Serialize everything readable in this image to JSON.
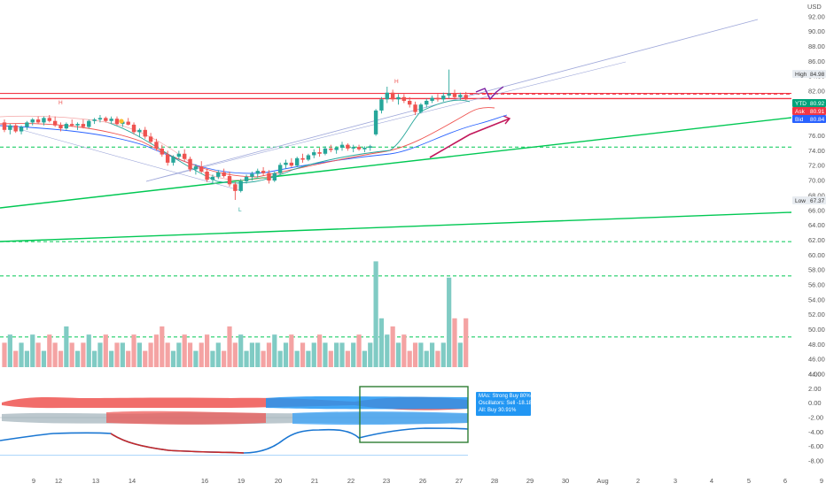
{
  "currency": "USD",
  "labels": {
    "high": "High",
    "high_value": "84.98",
    "low": "Low",
    "low_value": "67.37",
    "ytd": "YTD",
    "ytd_value": "80.92",
    "ask": "Ask",
    "ask_value": "80.91",
    "bid": "Bid",
    "bid_value": "80.84",
    "pivot_h1": "H",
    "pivot_h2": "H",
    "pivot_l": "L"
  },
  "signal": {
    "line1": "MAs: Strong Buy 80%",
    "line2": "Oscillators: Sell -18.18%",
    "line3": "All: Buy 30.91%"
  },
  "colors": {
    "up": "#26a69a",
    "down": "#ef5350",
    "accent_green": "#00c853",
    "accent_red": "#f23645",
    "accent_blue": "#2962ff",
    "signal_blue": "#2196f3"
  },
  "chart_data": {
    "type": "candlestick",
    "x_ticks": [
      "9",
      "12",
      "13",
      "14",
      "16",
      "19",
      "20",
      "21",
      "22",
      "23",
      "26",
      "27",
      "28",
      "29",
      "30",
      "Aug",
      "2",
      "3",
      "4",
      "5",
      "6",
      "9"
    ],
    "price_ticks": [
      "92.00",
      "90.00",
      "88.00",
      "86.00",
      "84.00",
      "82.00",
      "80.00",
      "78.00",
      "76.00",
      "74.00",
      "72.00",
      "70.00",
      "68.00",
      "66.00",
      "64.00",
      "62.00",
      "60.00",
      "58.00",
      "56.00",
      "54.00",
      "52.00",
      "50.00",
      "48.00",
      "46.00",
      "44.00"
    ],
    "osc_ticks": [
      "4.00",
      "2.00",
      "0.00",
      "-2.00",
      "-4.00",
      "-6.00",
      "-8.00"
    ],
    "candles": [
      [
        77.8,
        78.2,
        76.5,
        76.8
      ],
      [
        76.8,
        77.6,
        76.2,
        77.4
      ],
      [
        77.4,
        77.6,
        76.4,
        76.6
      ],
      [
        76.6,
        77.4,
        76.2,
        77.2
      ],
      [
        77.2,
        78.0,
        76.8,
        77.8
      ],
      [
        77.8,
        78.4,
        77.4,
        78.2
      ],
      [
        78.2,
        78.6,
        77.6,
        77.8
      ],
      [
        77.8,
        78.6,
        77.4,
        78.4
      ],
      [
        78.4,
        78.8,
        77.8,
        78.0
      ],
      [
        78.0,
        78.6,
        77.2,
        77.4
      ],
      [
        77.4,
        77.8,
        76.6,
        77.0
      ],
      [
        77.0,
        77.8,
        76.8,
        77.6
      ],
      [
        77.6,
        78.2,
        77.2,
        77.4
      ],
      [
        77.4,
        77.8,
        76.8,
        77.6
      ],
      [
        77.6,
        78.2,
        77.0,
        77.2
      ],
      [
        77.2,
        78.2,
        77.0,
        78.0
      ],
      [
        78.0,
        78.4,
        77.6,
        78.2
      ],
      [
        78.2,
        78.8,
        77.8,
        78.4
      ],
      [
        78.4,
        78.6,
        77.8,
        78.0
      ],
      [
        78.0,
        78.6,
        77.6,
        78.3
      ],
      [
        78.3,
        78.6,
        77.4,
        77.6
      ],
      [
        77.6,
        78.2,
        77.2,
        77.9
      ],
      [
        77.9,
        78.4,
        77.4,
        77.5
      ],
      [
        77.5,
        77.8,
        76.2,
        76.5
      ],
      [
        76.5,
        77.0,
        75.8,
        76.8
      ],
      [
        76.8,
        77.2,
        75.6,
        75.9
      ],
      [
        75.9,
        76.4,
        75.0,
        75.2
      ],
      [
        75.2,
        75.6,
        74.0,
        74.3
      ],
      [
        74.3,
        74.8,
        73.2,
        73.5
      ],
      [
        73.5,
        74.0,
        72.0,
        72.4
      ],
      [
        72.4,
        73.4,
        72.0,
        73.2
      ],
      [
        73.2,
        74.0,
        72.8,
        73.6
      ],
      [
        73.6,
        74.2,
        72.6,
        72.9
      ],
      [
        72.9,
        73.2,
        71.2,
        71.5
      ],
      [
        71.5,
        72.2,
        70.8,
        71.9
      ],
      [
        71.9,
        72.6,
        71.0,
        71.2
      ],
      [
        71.2,
        71.6,
        69.8,
        70.1
      ],
      [
        70.1,
        70.8,
        69.6,
        70.5
      ],
      [
        70.5,
        71.4,
        70.2,
        71.1
      ],
      [
        71.1,
        71.6,
        70.4,
        70.6
      ],
      [
        70.6,
        71.2,
        69.2,
        69.5
      ],
      [
        69.5,
        69.8,
        67.4,
        68.6
      ],
      [
        68.6,
        70.2,
        68.4,
        69.9
      ],
      [
        69.9,
        70.8,
        69.6,
        70.5
      ],
      [
        70.5,
        71.2,
        70.0,
        70.9
      ],
      [
        70.9,
        71.6,
        70.4,
        71.3
      ],
      [
        71.3,
        71.8,
        70.6,
        71.0
      ],
      [
        71.0,
        71.4,
        69.6,
        70.0
      ],
      [
        70.0,
        71.2,
        69.8,
        71.0
      ],
      [
        71.0,
        72.4,
        70.8,
        72.1
      ],
      [
        72.1,
        72.8,
        71.6,
        72.4
      ],
      [
        72.4,
        73.0,
        71.8,
        72.0
      ],
      [
        72.0,
        73.2,
        71.8,
        73.0
      ],
      [
        73.0,
        73.6,
        72.4,
        72.8
      ],
      [
        72.8,
        73.6,
        72.6,
        73.4
      ],
      [
        73.4,
        74.2,
        73.0,
        73.8
      ],
      [
        73.8,
        74.4,
        73.2,
        73.6
      ],
      [
        73.6,
        74.6,
        73.4,
        74.3
      ],
      [
        74.3,
        74.8,
        73.8,
        74.1
      ],
      [
        74.1,
        74.6,
        73.6,
        74.4
      ],
      [
        74.4,
        75.2,
        74.0,
        74.8
      ],
      [
        74.8,
        75.0,
        74.0,
        74.3
      ],
      [
        74.3,
        74.8,
        73.8,
        74.5
      ],
      [
        74.5,
        74.8,
        74.0,
        74.2
      ],
      [
        74.2,
        74.6,
        73.8,
        74.4
      ],
      [
        74.4,
        74.8,
        74.0,
        74.6
      ],
      [
        76.2,
        79.6,
        76.0,
        79.4
      ],
      [
        79.4,
        81.2,
        79.0,
        80.9
      ],
      [
        80.9,
        82.6,
        80.4,
        81.8
      ],
      [
        81.8,
        82.2,
        80.6,
        80.9
      ],
      [
        80.9,
        81.6,
        80.2,
        81.2
      ],
      [
        81.2,
        81.6,
        80.4,
        80.7
      ],
      [
        80.7,
        81.2,
        79.8,
        80.2
      ],
      [
        80.2,
        80.6,
        78.8,
        79.2
      ],
      [
        79.2,
        80.4,
        79.0,
        80.2
      ],
      [
        80.2,
        81.0,
        79.8,
        80.7
      ],
      [
        80.7,
        81.4,
        80.4,
        81.1
      ],
      [
        81.1,
        81.6,
        80.6,
        80.9
      ],
      [
        80.9,
        81.8,
        80.6,
        81.4
      ],
      [
        81.4,
        84.9,
        81.0,
        81.7
      ],
      [
        81.7,
        82.2,
        81.0,
        81.2
      ],
      [
        81.2,
        81.8,
        80.8,
        81.5
      ],
      [
        81.5,
        81.9,
        80.8,
        80.9
      ]
    ],
    "volumes": [
      47,
      48,
      46,
      47,
      46,
      48,
      47,
      46,
      48,
      47,
      46,
      49,
      47,
      46,
      47,
      48,
      46,
      47,
      48,
      46,
      47,
      47,
      46,
      48,
      47,
      46,
      47,
      48,
      49,
      47,
      46,
      47,
      48,
      47,
      46,
      47,
      48,
      46,
      47,
      46,
      49,
      47,
      48,
      46,
      47,
      47,
      46,
      47,
      48,
      46,
      47,
      48,
      46,
      47,
      46,
      47,
      48,
      47,
      46,
      47,
      47,
      46,
      47,
      48,
      46,
      47,
      57,
      50,
      48,
      49,
      47,
      48,
      46,
      47,
      47,
      46,
      47,
      46,
      47,
      55,
      50,
      47,
      50
    ],
    "levels": {
      "red_horizontal": 81.0,
      "red_dashed_top": 81.6,
      "green_dashed_1": 74.5,
      "green_dashed_2": 61.8,
      "green_dashed_3": 57.2,
      "green_dashed_4": 49.0
    },
    "y_range": [
      44,
      94
    ],
    "osc_range": [
      -8,
      4
    ]
  }
}
